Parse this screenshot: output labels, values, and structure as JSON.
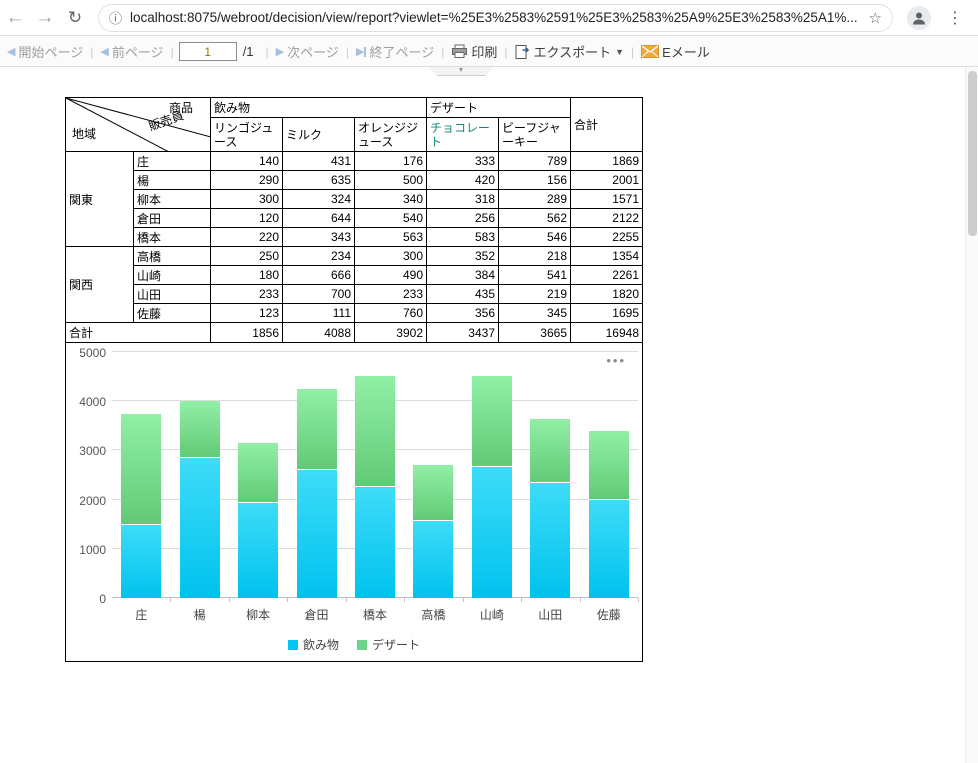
{
  "browser": {
    "url": "localhost:8075/webroot/decision/view/report?viewlet=%25E3%2583%2591%25E3%2583%25A9%25E3%2583%25A1%...",
    "icons": {
      "back": "←",
      "forward": "→",
      "reload": "↻",
      "info": "ⓘ",
      "star": "☆",
      "menu": "⋮"
    }
  },
  "toolbar": {
    "first_page": "開始ページ",
    "prev_page": "前ページ",
    "page_value": "1",
    "page_total": "/1",
    "next_page": "次ページ",
    "last_page": "終了ページ",
    "print": "印刷",
    "export": "エクスポート",
    "email": "Eメール",
    "icons": {
      "prev_arrow": "◀",
      "next_arrow": "▶",
      "export_caret": "▼",
      "collapse_caret": "▼"
    }
  },
  "report_table": {
    "corner": {
      "product": "商品",
      "salesperson": "販売員",
      "region": "地域"
    },
    "col_groups": [
      {
        "label": "飲み物",
        "span": 3
      },
      {
        "label": "デザート",
        "span": 2
      }
    ],
    "columns": [
      "リンゴジュース",
      "ミルク",
      "オレンジジュース",
      "チョコレート",
      "ビーフジャーキー"
    ],
    "total_col_label": "合計",
    "row_groups": [
      {
        "region": "関東",
        "rows": [
          {
            "name": "庄",
            "values": [
              140,
              431,
              176,
              333,
              789,
              1869
            ]
          },
          {
            "name": "楊",
            "values": [
              290,
              635,
              500,
              420,
              156,
              2001
            ]
          },
          {
            "name": "柳本",
            "values": [
              300,
              324,
              340,
              318,
              289,
              1571
            ]
          },
          {
            "name": "倉田",
            "values": [
              120,
              644,
              540,
              256,
              562,
              2122
            ]
          },
          {
            "name": "橋本",
            "values": [
              220,
              343,
              563,
              583,
              546,
              2255
            ]
          }
        ]
      },
      {
        "region": "関西",
        "rows": [
          {
            "name": "高橋",
            "values": [
              250,
              234,
              300,
              352,
              218,
              1354
            ]
          },
          {
            "name": "山崎",
            "values": [
              180,
              666,
              490,
              384,
              541,
              2261
            ]
          },
          {
            "name": "山田",
            "values": [
              233,
              700,
              233,
              435,
              219,
              1820
            ]
          },
          {
            "name": "佐藤",
            "values": [
              123,
              111,
              760,
              356,
              345,
              1695
            ]
          }
        ]
      },
      {
        "region_total_label": "合計"
      }
    ],
    "totals": [
      1856,
      4088,
      3902,
      3437,
      3665,
      16948
    ],
    "accent_teal": "#15897a"
  },
  "chart_data": {
    "type": "bar",
    "stacked": true,
    "categories": [
      "庄",
      "楊",
      "柳本",
      "倉田",
      "橋本",
      "高橋",
      "山崎",
      "山田",
      "佐藤"
    ],
    "series": [
      {
        "name": "飲み物",
        "color": "#00c8f0",
        "values": [
          1494,
          2850,
          1928,
          2608,
          2252,
          1568,
          2672,
          2332,
          1988
        ]
      },
      {
        "name": "デザート",
        "color": "#6fd38c",
        "values": [
          2244,
          1152,
          1214,
          1636,
          2258,
          1140,
          1850,
          1308,
          1402
        ]
      }
    ],
    "ylim": [
      0,
      5000
    ],
    "yticks": [
      0,
      1000,
      2000,
      3000,
      4000,
      5000
    ],
    "grid": true,
    "legend_position": "bottom",
    "more_icon": "•••"
  }
}
